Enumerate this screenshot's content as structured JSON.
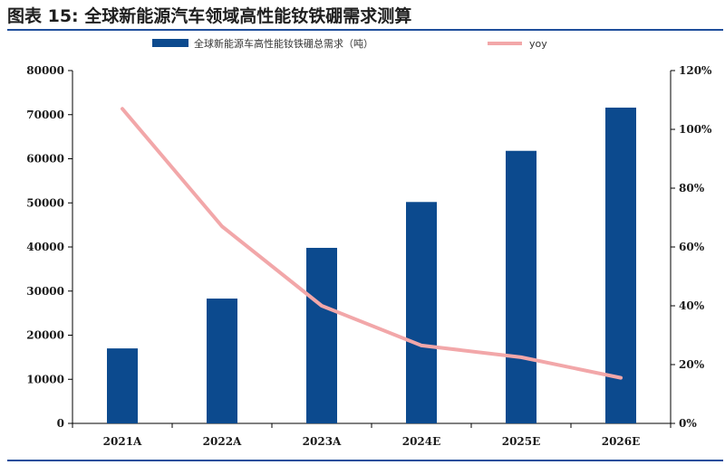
{
  "header": {
    "figure_title": "图表 15:  全球新能源汽车领域高性能钕铁硼需求测算"
  },
  "colors": {
    "bar": "#0c4a8e",
    "line": "#f2a7a9",
    "axis": "#000000",
    "rule": "#1f4e9c"
  },
  "chart_data": {
    "type": "bar",
    "categories": [
      "2021A",
      "2022A",
      "2023A",
      "2024E",
      "2025E",
      "2026E"
    ],
    "series": [
      {
        "name": "全球新能源车高性能钕铁硼总需求（吨）",
        "type": "bar",
        "axis": "left",
        "values": [
          17000,
          28300,
          39800,
          50200,
          61800,
          71600
        ]
      },
      {
        "name": "yoy",
        "type": "line",
        "axis": "right",
        "values": [
          107,
          67,
          40,
          26.5,
          22.5,
          15.5
        ]
      }
    ],
    "y_left": {
      "min": 0,
      "max": 80000,
      "ticks": [
        0,
        10000,
        20000,
        30000,
        40000,
        50000,
        60000,
        70000,
        80000
      ],
      "tick_labels": [
        "0",
        "10000",
        "20000",
        "30000",
        "40000",
        "50000",
        "60000",
        "70000",
        "80000"
      ]
    },
    "y_right": {
      "min": 0,
      "max": 120,
      "ticks": [
        0,
        20,
        40,
        60,
        80,
        100,
        120
      ],
      "tick_labels": [
        "0%",
        "20%",
        "40%",
        "60%",
        "80%",
        "100%",
        "120%"
      ]
    },
    "legend_position": "top",
    "grid": false
  }
}
